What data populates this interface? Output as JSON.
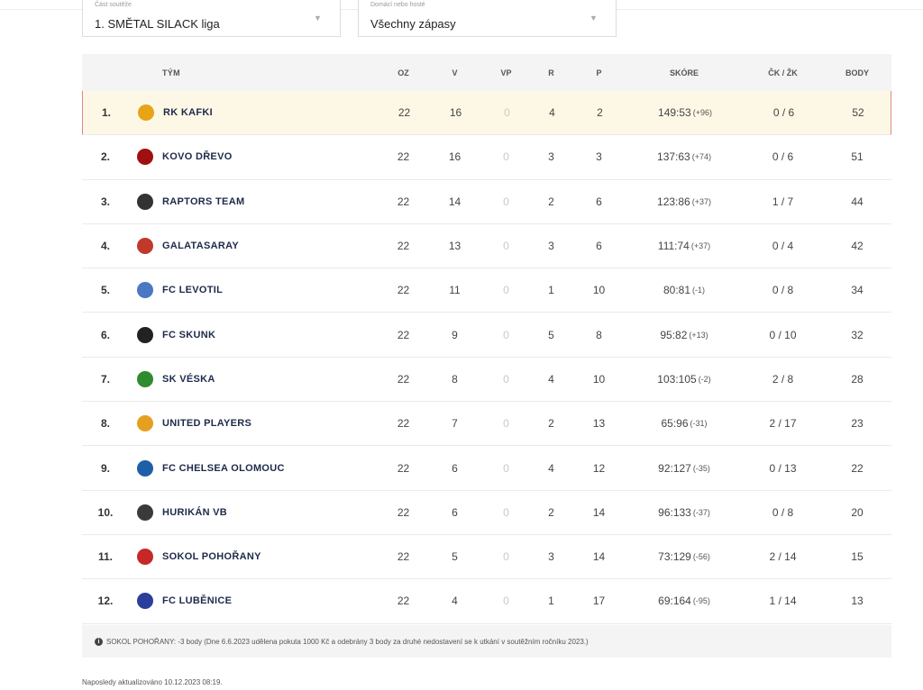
{
  "filters": {
    "part": {
      "label": "Část soutěže",
      "value": "1. SMĚTAL SILACK liga"
    },
    "venue": {
      "label": "Domácí nebo hosté",
      "value": "Všechny zápasy"
    }
  },
  "headers": {
    "team": "TÝM",
    "oz": "OZ",
    "v": "V",
    "vp": "VP",
    "r": "R",
    "p": "P",
    "score": "SKÓRE",
    "cards": "ČK / ŽK",
    "points": "BODY"
  },
  "rows": [
    {
      "rank": "1.",
      "team": "RK KAFKI",
      "oz": "22",
      "v": "16",
      "vp": "0",
      "r": "4",
      "p": "2",
      "score": "149:53",
      "diff": "(+96)",
      "cards": "0 / 6",
      "points": "52",
      "color": "#e8a317"
    },
    {
      "rank": "2.",
      "team": "KOVO DŘEVO",
      "oz": "22",
      "v": "16",
      "vp": "0",
      "r": "3",
      "p": "3",
      "score": "137:63",
      "diff": "(+74)",
      "cards": "0 / 6",
      "points": "51",
      "color": "#a01010"
    },
    {
      "rank": "3.",
      "team": "RAPTORS TEAM",
      "oz": "22",
      "v": "14",
      "vp": "0",
      "r": "2",
      "p": "6",
      "score": "123:86",
      "diff": "(+37)",
      "cards": "1 / 7",
      "points": "44",
      "color": "#333333"
    },
    {
      "rank": "4.",
      "team": "GALATASARAY",
      "oz": "22",
      "v": "13",
      "vp": "0",
      "r": "3",
      "p": "6",
      "score": "111:74",
      "diff": "(+37)",
      "cards": "0 / 4",
      "points": "42",
      "color": "#c0392b"
    },
    {
      "rank": "5.",
      "team": "FC LEVOTIL",
      "oz": "22",
      "v": "11",
      "vp": "0",
      "r": "1",
      "p": "10",
      "score": "80:81",
      "diff": "(-1)",
      "cards": "0 / 8",
      "points": "34",
      "color": "#4a78c2"
    },
    {
      "rank": "6.",
      "team": "FC SKUNK",
      "oz": "22",
      "v": "9",
      "vp": "0",
      "r": "5",
      "p": "8",
      "score": "95:82",
      "diff": "(+13)",
      "cards": "0 / 10",
      "points": "32",
      "color": "#222222"
    },
    {
      "rank": "7.",
      "team": "SK VÉSKA",
      "oz": "22",
      "v": "8",
      "vp": "0",
      "r": "4",
      "p": "10",
      "score": "103:105",
      "diff": "(-2)",
      "cards": "2 / 8",
      "points": "28",
      "color": "#2e8b2e"
    },
    {
      "rank": "8.",
      "team": "UNITED PLAYERS",
      "oz": "22",
      "v": "7",
      "vp": "0",
      "r": "2",
      "p": "13",
      "score": "65:96",
      "diff": "(-31)",
      "cards": "2 / 17",
      "points": "23",
      "color": "#e6a020"
    },
    {
      "rank": "9.",
      "team": "FC CHELSEA OLOMOUC",
      "oz": "22",
      "v": "6",
      "vp": "0",
      "r": "4",
      "p": "12",
      "score": "92:127",
      "diff": "(-35)",
      "cards": "0 / 13",
      "points": "22",
      "color": "#1f5fa8"
    },
    {
      "rank": "10.",
      "team": "HURIKÁN VB",
      "oz": "22",
      "v": "6",
      "vp": "0",
      "r": "2",
      "p": "14",
      "score": "96:133",
      "diff": "(-37)",
      "cards": "0 / 8",
      "points": "20",
      "color": "#3a3a3a"
    },
    {
      "rank": "11.",
      "team": "SOKOL POHOŘANY",
      "oz": "22",
      "v": "5",
      "vp": "0",
      "r": "3",
      "p": "14",
      "score": "73:129",
      "diff": "(-56)",
      "cards": "2 / 14",
      "points": "15",
      "color": "#c62828"
    },
    {
      "rank": "12.",
      "team": "FC LUBĚNICE",
      "oz": "22",
      "v": "4",
      "vp": "0",
      "r": "1",
      "p": "17",
      "score": "69:164",
      "diff": "(-95)",
      "cards": "1 / 14",
      "points": "13",
      "color": "#2a3f9a"
    }
  ],
  "note": "SOKOL POHOŘANY: -3 body (Dne 6.6.2023 udělena pokuta 1000 Kč a odebrány 3 body za druhé nedostavení se k utkání v soutěžním ročníku 2023.)",
  "updated": "Naposledy aktualizováno 10.12.2023 08:19."
}
